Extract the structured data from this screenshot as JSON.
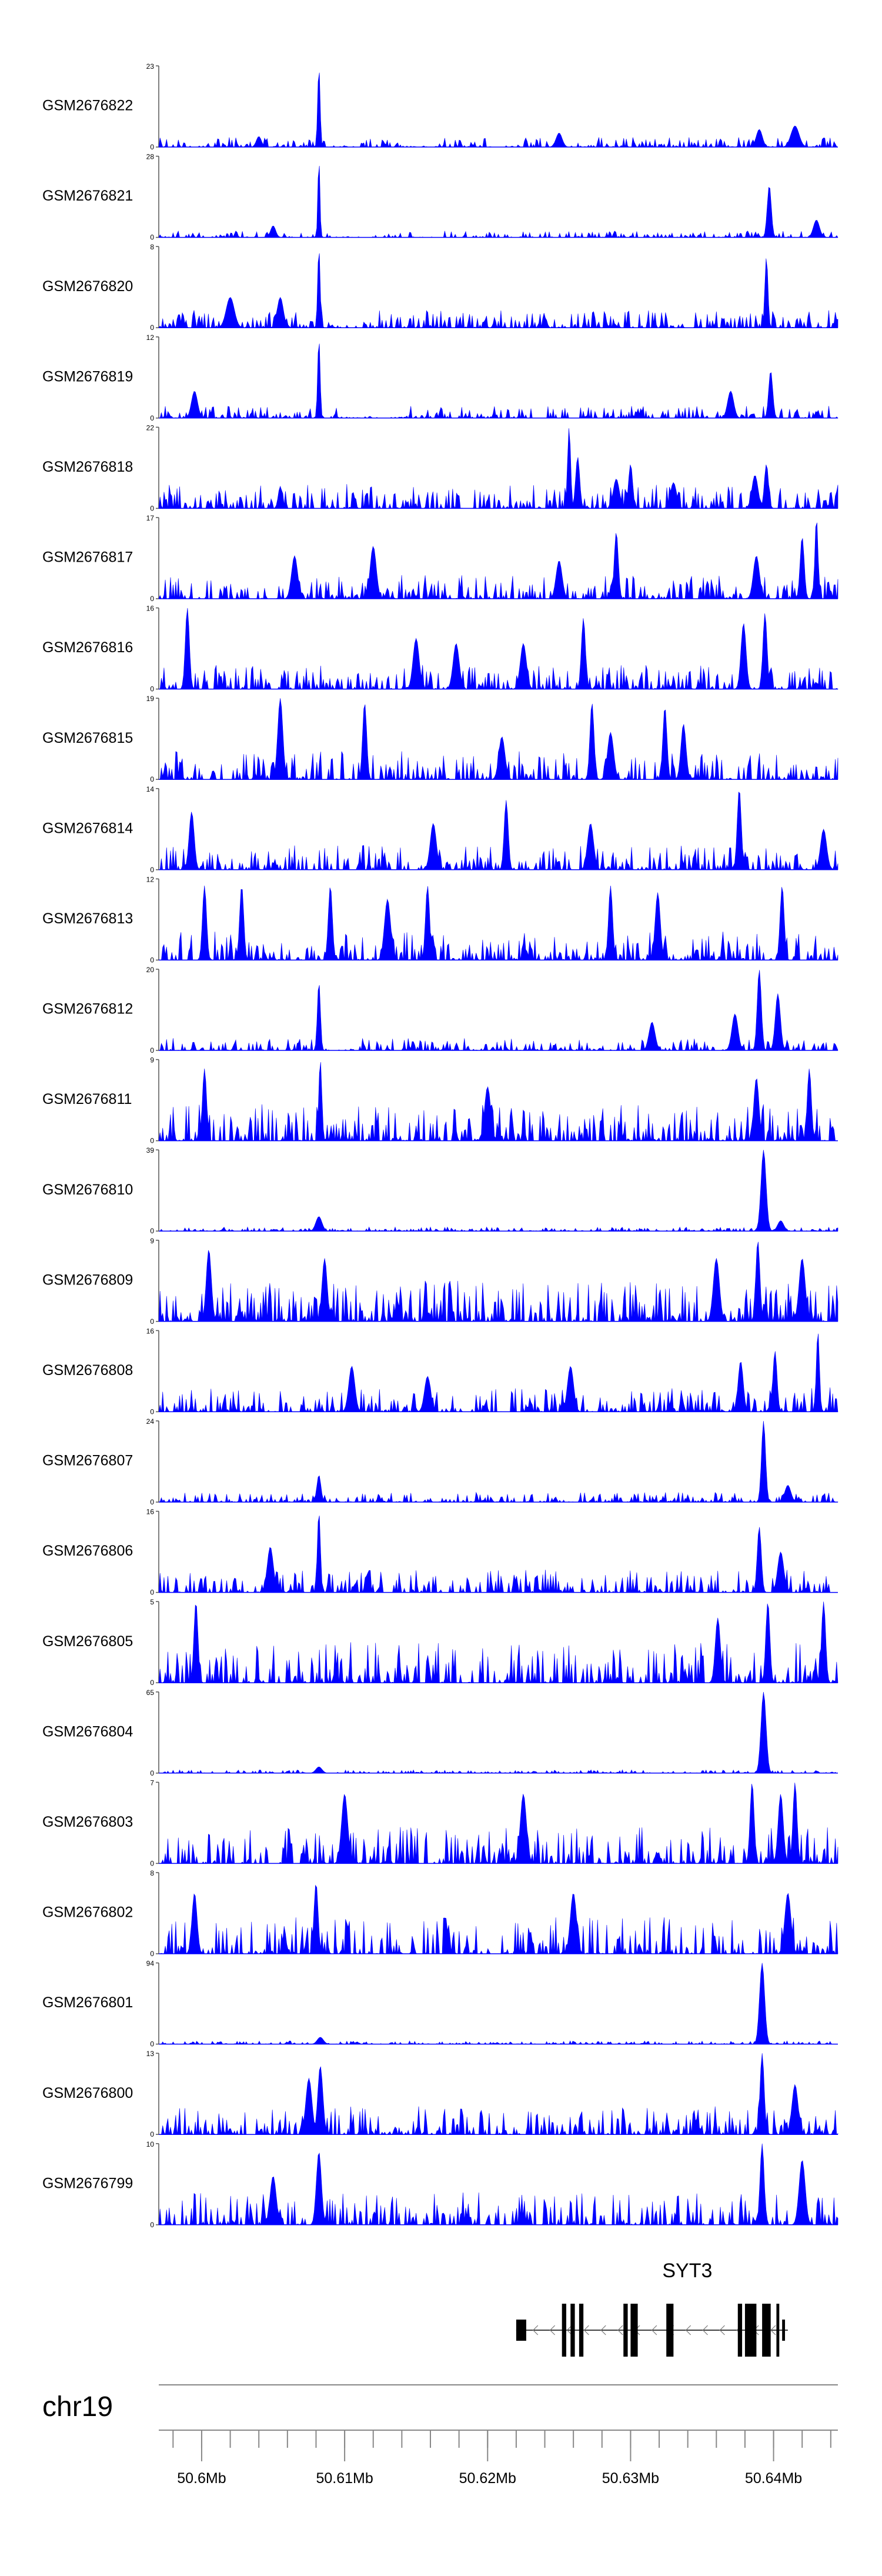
{
  "chart_data": {
    "type": "area",
    "color": "#0000ff",
    "chromosome": "chr19",
    "x_range_bp": [
      50597000,
      50644500
    ],
    "ticks": [
      {
        "position": 50600000,
        "label": "50.6Mb"
      },
      {
        "position": 50610000,
        "label": "50.61Mb"
      },
      {
        "position": 50620000,
        "label": "50.62Mb"
      },
      {
        "position": 50630000,
        "label": "50.63Mb"
      },
      {
        "position": 50640000,
        "label": "50.64Mb"
      }
    ],
    "minor_tick_step_bp": 2000,
    "gene": {
      "name": "SYT3",
      "strand": "-",
      "start": 50622000,
      "end": 50641000,
      "exons": [
        [
          50622000,
          50622700
        ],
        [
          50625200,
          50625500
        ],
        [
          50625800,
          50626100
        ],
        [
          50626400,
          50626700
        ],
        [
          50629500,
          50629800
        ],
        [
          50630000,
          50630500
        ],
        [
          50632500,
          50633000
        ],
        [
          50637500,
          50637800
        ],
        [
          50638000,
          50638800
        ],
        [
          50639200,
          50639800
        ],
        [
          50640200,
          50640400
        ],
        [
          50640600,
          50640800
        ]
      ]
    },
    "tracks": [
      {
        "name": "GSM2676822",
        "ymin": 0,
        "ymax": 23,
        "peaks": [
          [
            50608200,
            23,
            120
          ],
          [
            50639000,
            5,
            300
          ],
          [
            50641500,
            6,
            400
          ],
          [
            50604000,
            3,
            250
          ],
          [
            50625000,
            4,
            300
          ]
        ],
        "noise": 0.12,
        "seed": 101,
        "gaps": [
          [
            50609000,
            50611000
          ],
          [
            50614000,
            50616500
          ],
          [
            50620000,
            50622000
          ]
        ]
      },
      {
        "name": "GSM2676821",
        "ymin": 0,
        "ymax": 28,
        "peaks": [
          [
            50608200,
            28,
            100
          ],
          [
            50639700,
            18,
            200
          ],
          [
            50643000,
            6,
            300
          ],
          [
            50605000,
            4,
            250
          ]
        ],
        "noise": 0.08,
        "seed": 102,
        "gaps": [
          [
            50609000,
            50612000
          ],
          [
            50615000,
            50617000
          ]
        ]
      },
      {
        "name": "GSM2676820",
        "ymin": 0,
        "ymax": 8,
        "peaks": [
          [
            50608200,
            8,
            120
          ],
          [
            50639500,
            7,
            150
          ],
          [
            50602000,
            3,
            400
          ],
          [
            50605500,
            3,
            300
          ]
        ],
        "noise": 0.22,
        "seed": 103,
        "gaps": [
          [
            50609200,
            50610500
          ]
        ]
      },
      {
        "name": "GSM2676819",
        "ymin": 0,
        "ymax": 12,
        "peaks": [
          [
            50608200,
            12,
            120
          ],
          [
            50639800,
            7,
            200
          ],
          [
            50599500,
            4,
            300
          ],
          [
            50637000,
            4,
            300
          ]
        ],
        "noise": 0.15,
        "seed": 104,
        "gaps": [
          [
            50609500,
            50614000
          ]
        ]
      },
      {
        "name": "GSM2676818",
        "ymin": 0,
        "ymax": 22,
        "peaks": [
          [
            50625700,
            22,
            150
          ],
          [
            50626300,
            14,
            200
          ],
          [
            50630000,
            12,
            200
          ],
          [
            50639500,
            12,
            200
          ],
          [
            50638700,
            9,
            300
          ],
          [
            50629000,
            8,
            300
          ],
          [
            50633000,
            7,
            300
          ],
          [
            50605500,
            6,
            200
          ]
        ],
        "noise": 0.3,
        "seed": 105,
        "gaps": []
      },
      {
        "name": "GSM2676817",
        "ymin": 0,
        "ymax": 17,
        "peaks": [
          [
            50629000,
            14,
            200
          ],
          [
            50643000,
            17,
            150
          ],
          [
            50642000,
            13,
            200
          ],
          [
            50612000,
            11,
            300
          ],
          [
            50606500,
            9,
            300
          ],
          [
            50638800,
            9,
            300
          ],
          [
            50625000,
            8,
            300
          ]
        ],
        "noise": 0.3,
        "seed": 106,
        "gaps": []
      },
      {
        "name": "GSM2676816",
        "ymin": 0,
        "ymax": 16,
        "peaks": [
          [
            50599000,
            16,
            200
          ],
          [
            50626700,
            14,
            200
          ],
          [
            50639400,
            15,
            200
          ],
          [
            50637900,
            13,
            250
          ],
          [
            50615000,
            10,
            300
          ],
          [
            50617800,
            9,
            300
          ],
          [
            50622500,
            9,
            300
          ]
        ],
        "noise": 0.3,
        "seed": 107,
        "gaps": []
      },
      {
        "name": "GSM2676815",
        "ymin": 0,
        "ymax": 19,
        "peaks": [
          [
            50605500,
            19,
            250
          ],
          [
            50611400,
            18,
            200
          ],
          [
            50627300,
            18,
            200
          ],
          [
            50632400,
            17,
            200
          ],
          [
            50633700,
            13,
            250
          ],
          [
            50628600,
            11,
            300
          ],
          [
            50621000,
            10,
            300
          ]
        ],
        "noise": 0.35,
        "seed": 108,
        "gaps": []
      },
      {
        "name": "GSM2676814",
        "ymin": 0,
        "ymax": 14,
        "peaks": [
          [
            50637600,
            14,
            200
          ],
          [
            50621300,
            12,
            200
          ],
          [
            50599300,
            10,
            250
          ],
          [
            50616200,
            8,
            300
          ],
          [
            50627200,
            8,
            300
          ],
          [
            50643500,
            7,
            300
          ]
        ],
        "noise": 0.3,
        "seed": 109,
        "gaps": []
      },
      {
        "name": "GSM2676813",
        "ymin": 0,
        "ymax": 12,
        "peaks": [
          [
            50600200,
            11,
            200
          ],
          [
            50602800,
            11,
            200
          ],
          [
            50609000,
            11,
            200
          ],
          [
            50615800,
            11,
            200
          ],
          [
            50628600,
            11,
            200
          ],
          [
            50631900,
            10,
            250
          ],
          [
            50640600,
            11,
            200
          ],
          [
            50613000,
            9,
            300
          ]
        ],
        "noise": 0.35,
        "seed": 110,
        "gaps": []
      },
      {
        "name": "GSM2676812",
        "ymin": 0,
        "ymax": 20,
        "peaks": [
          [
            50608200,
            17,
            150
          ],
          [
            50639000,
            20,
            200
          ],
          [
            50640300,
            14,
            250
          ],
          [
            50637300,
            9,
            300
          ],
          [
            50631500,
            7,
            300
          ]
        ],
        "noise": 0.15,
        "seed": 111,
        "gaps": [
          [
            50609000,
            50611000
          ]
        ]
      },
      {
        "name": "GSM2676811",
        "ymin": 0,
        "ymax": 9,
        "peaks": [
          [
            50608300,
            9,
            150
          ],
          [
            50600200,
            8,
            200
          ],
          [
            50642500,
            8,
            200
          ],
          [
            50620000,
            6,
            300
          ],
          [
            50638800,
            7,
            250
          ]
        ],
        "noise": 0.45,
        "seed": 112,
        "gaps": []
      },
      {
        "name": "GSM2676810",
        "ymin": 0,
        "ymax": 39,
        "peaks": [
          [
            50639300,
            39,
            250
          ],
          [
            50608200,
            7,
            300
          ],
          [
            50640500,
            5,
            300
          ]
        ],
        "noise": 0.05,
        "seed": 113,
        "gaps": []
      },
      {
        "name": "GSM2676809",
        "ymin": 0,
        "ymax": 9,
        "peaks": [
          [
            50638900,
            9,
            200
          ],
          [
            50600500,
            8,
            250
          ],
          [
            50636000,
            7,
            300
          ],
          [
            50608600,
            7,
            250
          ],
          [
            50642000,
            7,
            300
          ]
        ],
        "noise": 0.5,
        "seed": 114,
        "gaps": []
      },
      {
        "name": "GSM2676808",
        "ymin": 0,
        "ymax": 16,
        "peaks": [
          [
            50643100,
            16,
            150
          ],
          [
            50640100,
            12,
            200
          ],
          [
            50637700,
            10,
            250
          ],
          [
            50610500,
            9,
            300
          ],
          [
            50625800,
            9,
            300
          ],
          [
            50615800,
            7,
            300
          ]
        ],
        "noise": 0.3,
        "seed": 115,
        "gaps": []
      },
      {
        "name": "GSM2676807",
        "ymin": 0,
        "ymax": 24,
        "peaks": [
          [
            50639300,
            24,
            200
          ],
          [
            50608200,
            8,
            200
          ],
          [
            50641000,
            5,
            300
          ]
        ],
        "noise": 0.12,
        "seed": 116,
        "gaps": []
      },
      {
        "name": "GSM2676806",
        "ymin": 0,
        "ymax": 16,
        "peaks": [
          [
            50608200,
            16,
            150
          ],
          [
            50639000,
            13,
            200
          ],
          [
            50604800,
            9,
            300
          ],
          [
            50640500,
            8,
            300
          ]
        ],
        "noise": 0.28,
        "seed": 117,
        "gaps": []
      },
      {
        "name": "GSM2676805",
        "ymin": 0,
        "ymax": 5,
        "peaks": [
          [
            50599600,
            5,
            200
          ],
          [
            50639600,
            5,
            200
          ],
          [
            50643500,
            5,
            200
          ],
          [
            50636100,
            4,
            250
          ]
        ],
        "noise": 0.5,
        "seed": 118,
        "gaps": []
      },
      {
        "name": "GSM2676804",
        "ymin": 0,
        "ymax": 65,
        "peaks": [
          [
            50639300,
            65,
            250
          ],
          [
            50608200,
            5,
            300
          ]
        ],
        "noise": 0.04,
        "seed": 119,
        "gaps": []
      },
      {
        "name": "GSM2676803",
        "ymin": 0,
        "ymax": 7,
        "peaks": [
          [
            50638500,
            7,
            200
          ],
          [
            50641500,
            7,
            200
          ],
          [
            50640500,
            6,
            250
          ],
          [
            50610000,
            6,
            300
          ],
          [
            50622500,
            6,
            300
          ]
        ],
        "noise": 0.45,
        "seed": 120,
        "gaps": []
      },
      {
        "name": "GSM2676802",
        "ymin": 0,
        "ymax": 8,
        "peaks": [
          [
            50608000,
            7,
            200
          ],
          [
            50599500,
            6,
            250
          ],
          [
            50626000,
            6,
            300
          ],
          [
            50641000,
            6,
            300
          ]
        ],
        "noise": 0.45,
        "seed": 121,
        "gaps": []
      },
      {
        "name": "GSM2676801",
        "ymin": 0,
        "ymax": 94,
        "peaks": [
          [
            50639200,
            94,
            250
          ],
          [
            50608300,
            8,
            300
          ]
        ],
        "noise": 0.04,
        "seed": 122,
        "gaps": []
      },
      {
        "name": "GSM2676800",
        "ymin": 0,
        "ymax": 13,
        "peaks": [
          [
            50639200,
            13,
            200
          ],
          [
            50608300,
            11,
            250
          ],
          [
            50607500,
            9,
            300
          ],
          [
            50641500,
            8,
            300
          ]
        ],
        "noise": 0.35,
        "seed": 123,
        "gaps": []
      },
      {
        "name": "GSM2676799",
        "ymin": 0,
        "ymax": 10,
        "peaks": [
          [
            50639200,
            10,
            200
          ],
          [
            50608200,
            9,
            250
          ],
          [
            50642000,
            8,
            300
          ],
          [
            50605000,
            6,
            300
          ]
        ],
        "noise": 0.4,
        "seed": 124,
        "gaps": []
      }
    ]
  }
}
